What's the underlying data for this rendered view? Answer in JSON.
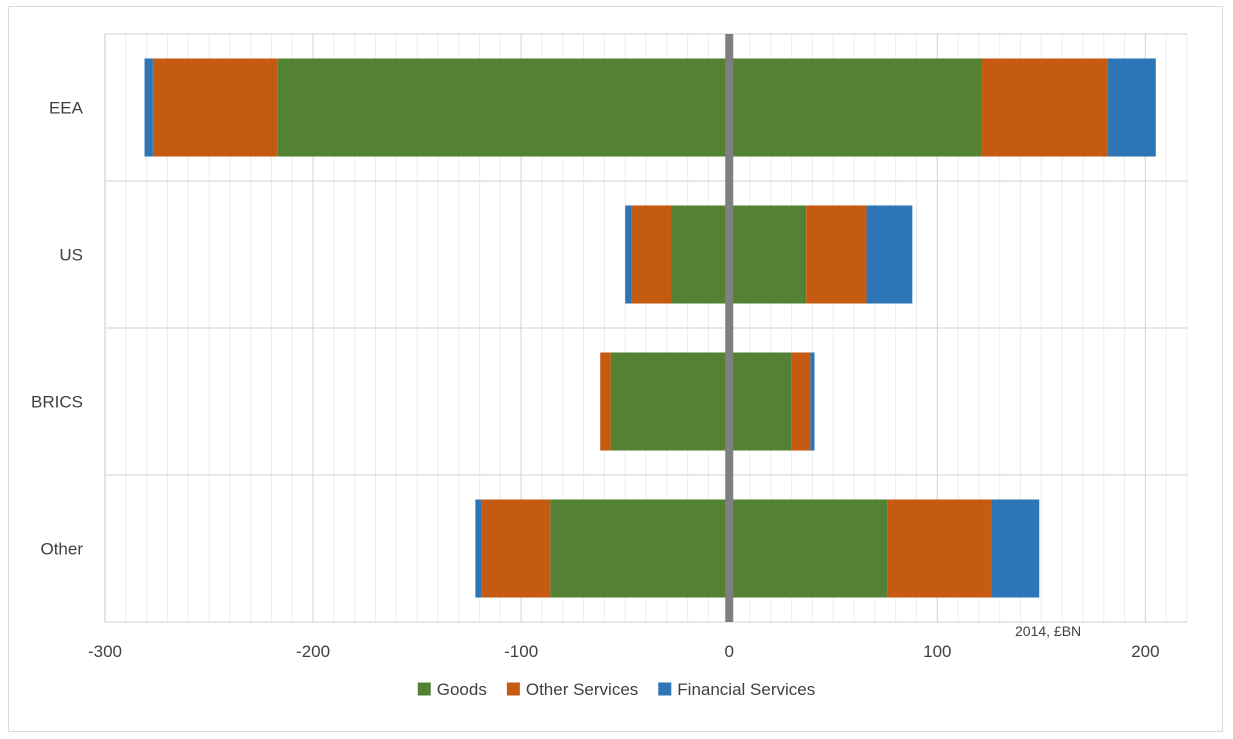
{
  "chart_data": {
    "type": "bar",
    "orientation": "horizontal",
    "stacking": "diverging",
    "categories": [
      "EEA",
      "US",
      "BRICS",
      "Other"
    ],
    "series": [
      {
        "name": "Goods",
        "color": "#548235",
        "negative": [
          -217,
          -28,
          -57,
          -86
        ],
        "positive": [
          121,
          37,
          30,
          76
        ]
      },
      {
        "name": "Other Services",
        "color": "#c55a11",
        "negative": [
          -60,
          -19,
          -5,
          -33
        ],
        "positive": [
          61,
          29,
          9,
          50
        ]
      },
      {
        "name": "Financial Services",
        "color": "#2e75b6",
        "negative": [
          -4,
          -3,
          0,
          -3
        ],
        "positive": [
          23,
          22,
          2,
          23
        ]
      }
    ],
    "xlim": [
      -300,
      220
    ],
    "xticks": [
      -300,
      -200,
      -100,
      0,
      100,
      200
    ],
    "minor_tick_step": 10,
    "annotation": "2014, £BN",
    "legend_position": "bottom",
    "grid": true
  }
}
